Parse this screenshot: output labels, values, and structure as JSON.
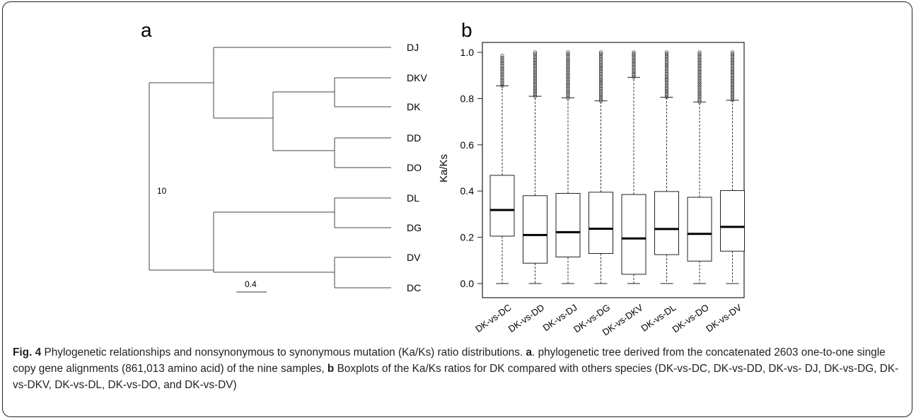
{
  "panel_a": {
    "label": "a",
    "taxa": [
      "DJ",
      "DKV",
      "DK",
      "DD",
      "DO",
      "DL",
      "DG",
      "DV",
      "DC"
    ],
    "node_label": "10",
    "scale_label": "0.4"
  },
  "chart_data": {
    "type": "box",
    "panel_label": "b",
    "ylabel": "Ka/Ks",
    "ylim": [
      -0.05,
      1.08
    ],
    "yticks": [
      0.0,
      0.2,
      0.4,
      0.6,
      0.8,
      1.0
    ],
    "ytick_labels": [
      "0.0",
      "0.2",
      "0.4",
      "0.6",
      "0.8",
      "1.0"
    ],
    "categories": [
      "DK-vs-DC",
      "DK-vs-DD",
      "DK-vs-DJ",
      "DK-vs-DG",
      "DK-vs-DKV",
      "DK-vs-DL",
      "DK-vs-DO",
      "DK-vs-DV"
    ],
    "boxes": [
      {
        "min": 0.0,
        "q1": 0.205,
        "median": 0.318,
        "q3": 0.468,
        "whisker_high": 0.855,
        "outliers_from": 0.855,
        "outliers_to": 0.985
      },
      {
        "min": 0.0,
        "q1": 0.088,
        "median": 0.21,
        "q3": 0.38,
        "whisker_high": 0.81,
        "outliers_from": 0.81,
        "outliers_to": 1.0
      },
      {
        "min": 0.0,
        "q1": 0.115,
        "median": 0.222,
        "q3": 0.39,
        "whisker_high": 0.803,
        "outliers_from": 0.803,
        "outliers_to": 1.0
      },
      {
        "min": 0.0,
        "q1": 0.13,
        "median": 0.237,
        "q3": 0.395,
        "whisker_high": 0.79,
        "outliers_from": 0.79,
        "outliers_to": 1.0
      },
      {
        "min": 0.0,
        "q1": 0.04,
        "median": 0.195,
        "q3": 0.385,
        "whisker_high": 0.892,
        "outliers_from": 0.892,
        "outliers_to": 1.0
      },
      {
        "min": 0.0,
        "q1": 0.125,
        "median": 0.236,
        "q3": 0.398,
        "whisker_high": 0.806,
        "outliers_from": 0.806,
        "outliers_to": 1.0
      },
      {
        "min": 0.0,
        "q1": 0.097,
        "median": 0.215,
        "q3": 0.373,
        "whisker_high": 0.785,
        "outliers_from": 0.785,
        "outliers_to": 1.0
      },
      {
        "min": 0.0,
        "q1": 0.14,
        "median": 0.245,
        "q3": 0.402,
        "whisker_high": 0.793,
        "outliers_from": 0.793,
        "outliers_to": 1.0
      }
    ]
  },
  "caption": {
    "fig_label": "Fig. 4",
    "title_text": " Phylogenetic relationships and nonsynonymous to synonymous mutation (Ka/Ks) ratio distributions. ",
    "part_a_label": "a",
    "part_a_text": ". phylogenetic tree derived from the concatenated 2603 one-to-one single copy gene alignments (861,013 amino acid) of the nine samples, ",
    "part_b_label": "b",
    "part_b_text": " Boxplots of the Ka/Ks ratios for DK compared with others species (DK-vs-DC, DK-vs-DD, DK-vs- DJ, DK-vs-DG, DK-vs-DKV, DK-vs-DL, DK-vs-DO, and DK-vs-DV)"
  }
}
